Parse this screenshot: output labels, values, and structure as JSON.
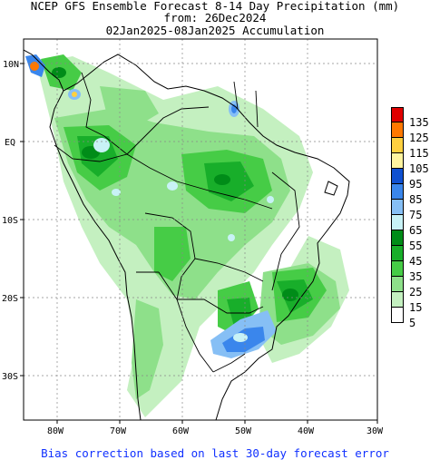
{
  "title": {
    "line1": "NCEP GFS Ensemble Forecast 8-14 Day Precipitation (mm)",
    "line2": "from: 26Dec2024",
    "line3": "02Jan2025-08Jan2025 Accumulation"
  },
  "axes": {
    "lat_labels": [
      "10N",
      "EQ",
      "10S",
      "20S",
      "30S"
    ],
    "lon_labels": [
      "80W",
      "70W",
      "60W",
      "50W",
      "40W",
      "30W"
    ]
  },
  "legend": {
    "levels": [
      {
        "label": "135",
        "color": "#e00000"
      },
      {
        "label": "125",
        "color": "#ff7800"
      },
      {
        "label": "115",
        "color": "#ffd040"
      },
      {
        "label": "105",
        "color": "#fff4a0"
      },
      {
        "label": "95",
        "color": "#1050d0"
      },
      {
        "label": "85",
        "color": "#3a86ec"
      },
      {
        "label": "75",
        "color": "#86bff5"
      },
      {
        "label": "65",
        "color": "#c8f2f6"
      },
      {
        "label": "55",
        "color": "#008c18"
      },
      {
        "label": "45",
        "color": "#18ae2a"
      },
      {
        "label": "35",
        "color": "#46cc46"
      },
      {
        "label": "25",
        "color": "#8ee08a"
      },
      {
        "label": "15",
        "color": "#c4f0c0"
      },
      {
        "label": "5",
        "color": "#ffffff"
      }
    ]
  },
  "footer_note": "Bias correction based on last 30-day forecast error"
}
